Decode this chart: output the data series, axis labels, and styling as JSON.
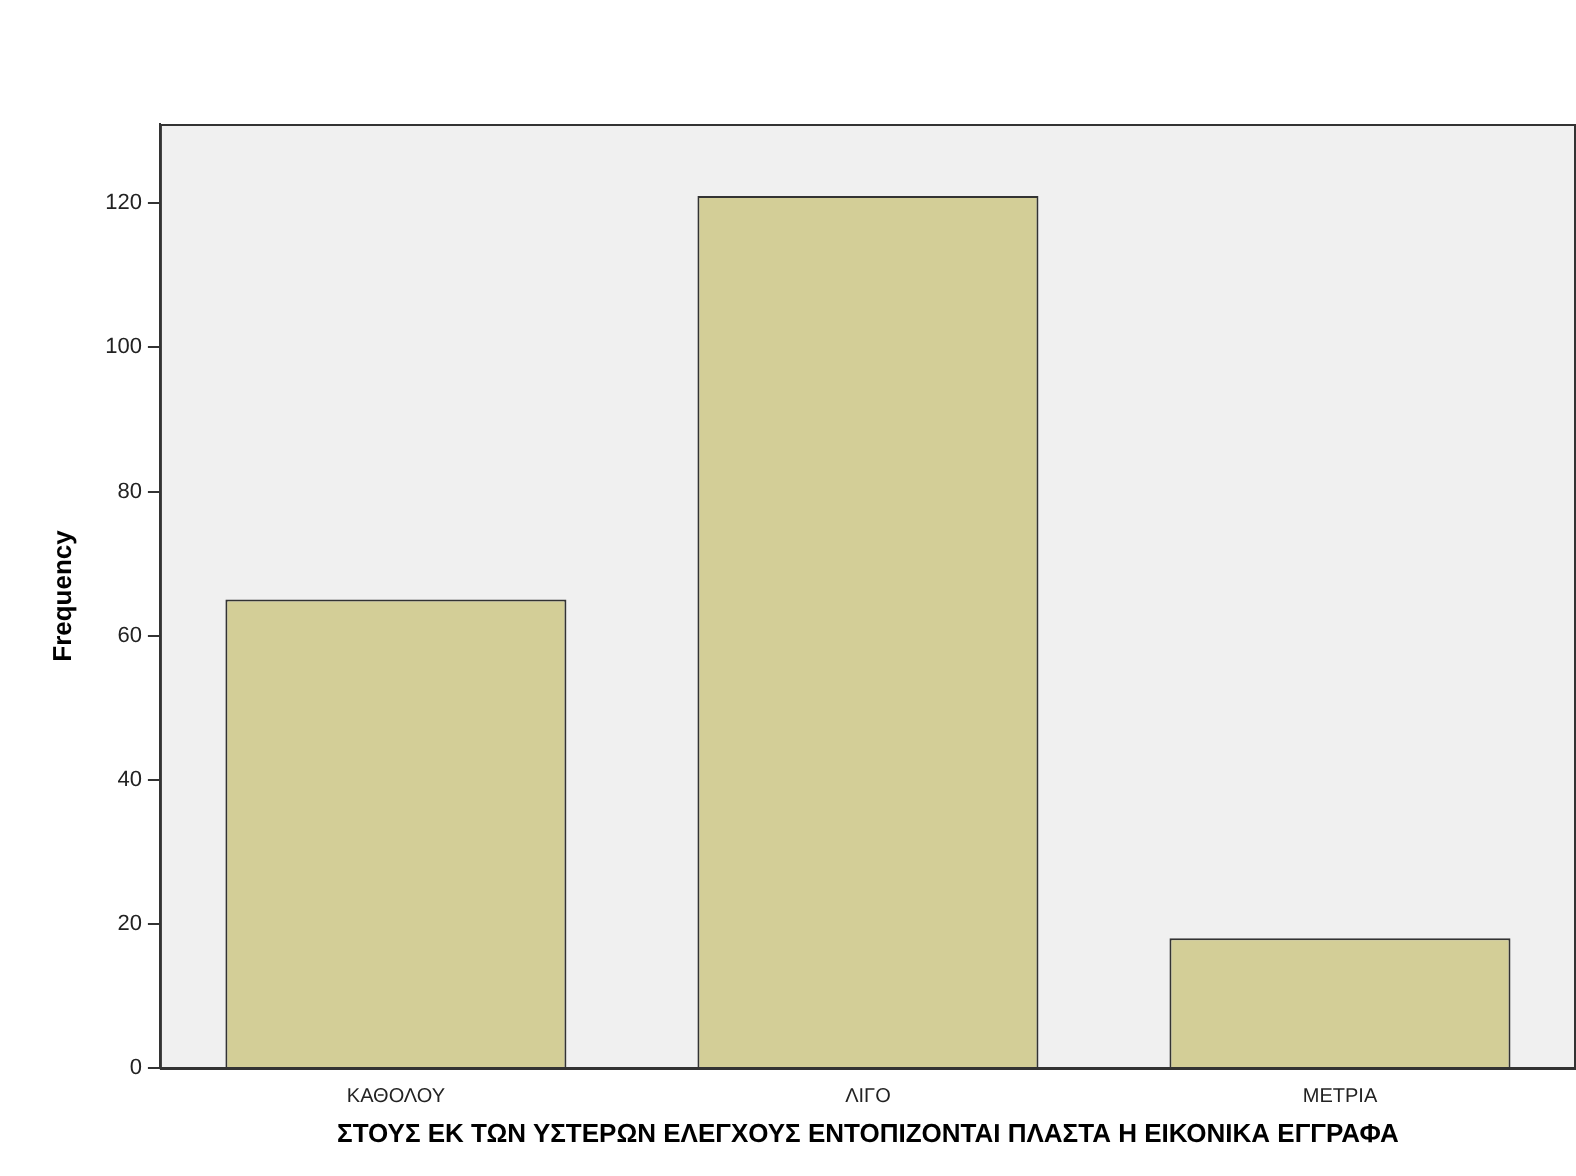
{
  "chart_data": {
    "type": "bar",
    "xlabel": "ΣΤΟΥΣ ΕΚ ΤΩΝ ΥΣΤΕΡΩΝ ΕΛΕΓΧΟΥΣ ΕΝΤΟΠΙΖΟΝΤΑΙ ΠΛΑΣΤΑ Η ΕΙΚΟΝΙΚΑ ΕΓΓΡΑΦΑ",
    "ylabel": "Frequency",
    "categories": [
      "ΚΑΘΟΛΟΥ",
      "ΛΙΓΟ",
      "ΜΕΤΡΙΑ"
    ],
    "values": [
      65,
      121,
      18
    ],
    "color": "#d3ce97",
    "ylim": [
      0,
      131
    ],
    "yticks": [
      0,
      20,
      40,
      60,
      80,
      100,
      120
    ],
    "grid": false,
    "legend": false
  }
}
